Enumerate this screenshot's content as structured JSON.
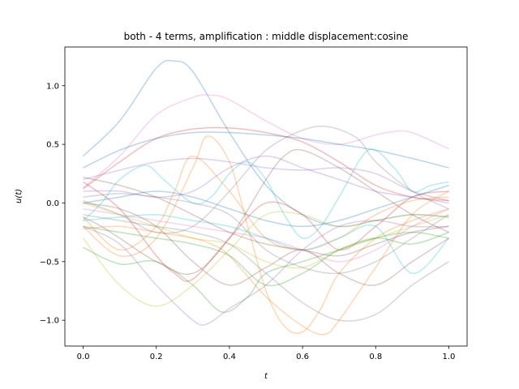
{
  "chart_data": {
    "type": "line",
    "title": "both - 4 terms, amplification : middle displacement:cosine",
    "xlabel": "t",
    "ylabel": "u(t)",
    "xlim": [
      -0.05,
      1.05
    ],
    "ylim": [
      -1.22,
      1.33
    ],
    "xticks": [
      0.0,
      0.2,
      0.4,
      0.6,
      0.8,
      1.0
    ],
    "xtick_labels": [
      "0.0",
      "0.2",
      "0.4",
      "0.6",
      "0.8",
      "1.0"
    ],
    "yticks": [
      -1.0,
      -0.5,
      0.0,
      0.5,
      1.0
    ],
    "ytick_labels": [
      "−1.0",
      "−0.5",
      "0.0",
      "0.5",
      "1.0"
    ],
    "grid": false,
    "legend": "none",
    "line_alpha": 0.3,
    "series": [
      {
        "color": "#1f77b4",
        "x": [
          0.0,
          0.1,
          0.2,
          0.25,
          0.3,
          0.4,
          0.5,
          0.6,
          0.7,
          0.8,
          0.9,
          1.0
        ],
        "y": [
          0.4,
          0.7,
          1.15,
          1.21,
          1.12,
          0.6,
          0.15,
          -0.1,
          -0.2,
          -0.15,
          -0.1,
          -0.12
        ]
      },
      {
        "color": "#e377c2",
        "x": [
          0.0,
          0.1,
          0.2,
          0.3,
          0.35,
          0.4,
          0.5,
          0.6,
          0.7,
          0.8,
          0.85,
          0.9,
          1.0
        ],
        "y": [
          0.13,
          0.4,
          0.75,
          0.9,
          0.92,
          0.88,
          0.7,
          0.55,
          0.5,
          0.58,
          0.61,
          0.6,
          0.46
        ]
      },
      {
        "color": "#7f7f7f",
        "x": [
          0.0,
          0.1,
          0.2,
          0.3,
          0.4,
          0.5,
          0.6,
          0.67,
          0.75,
          0.8,
          0.9,
          1.0
        ],
        "y": [
          0.02,
          -0.1,
          -0.25,
          -0.2,
          0.1,
          0.45,
          0.62,
          0.65,
          0.55,
          0.35,
          0.1,
          -0.05
        ]
      },
      {
        "color": "#1f77b4",
        "x": [
          0.0,
          0.1,
          0.2,
          0.3,
          0.4,
          0.5,
          0.6,
          0.7,
          0.8,
          0.9,
          1.0
        ],
        "y": [
          0.3,
          0.45,
          0.55,
          0.6,
          0.6,
          0.58,
          0.55,
          0.5,
          0.45,
          0.38,
          0.3
        ]
      },
      {
        "color": "#d62728",
        "x": [
          0.0,
          0.1,
          0.2,
          0.3,
          0.4,
          0.5,
          0.6,
          0.7,
          0.8,
          0.9,
          1.0
        ],
        "y": [
          0.12,
          0.35,
          0.55,
          0.63,
          0.64,
          0.6,
          0.52,
          0.35,
          0.15,
          0.05,
          0.02
        ]
      },
      {
        "color": "#9467bd",
        "x": [
          0.0,
          0.1,
          0.2,
          0.3,
          0.4,
          0.5,
          0.6,
          0.7,
          0.8,
          0.9,
          1.0
        ],
        "y": [
          0.2,
          0.28,
          0.35,
          0.38,
          0.35,
          0.3,
          0.28,
          0.3,
          0.25,
          0.1,
          0.02
        ]
      },
      {
        "color": "#17becf",
        "x": [
          0.0,
          0.05,
          0.1,
          0.17,
          0.22,
          0.3,
          0.35,
          0.4,
          0.45,
          0.5,
          0.55,
          0.6,
          0.65,
          0.7,
          0.78,
          0.85,
          0.9,
          0.95,
          1.0
        ],
        "y": [
          -0.15,
          0.0,
          0.2,
          0.32,
          0.2,
          0.0,
          0.05,
          0.25,
          0.35,
          0.2,
          -0.1,
          -0.3,
          -0.2,
          0.05,
          0.45,
          0.3,
          0.1,
          0.15,
          0.18
        ]
      },
      {
        "color": "#ff7f0e",
        "x": [
          0.0,
          0.1,
          0.2,
          0.3,
          0.34,
          0.4,
          0.45,
          0.5,
          0.55,
          0.6,
          0.65,
          0.7,
          0.8,
          0.9,
          1.0
        ],
        "y": [
          -0.2,
          -0.45,
          -0.3,
          0.3,
          0.57,
          0.35,
          -0.2,
          -0.75,
          -1.05,
          -1.1,
          -0.9,
          -0.6,
          -0.3,
          -0.15,
          -0.05
        ]
      },
      {
        "color": "#ff7f0e",
        "x": [
          0.0,
          0.1,
          0.2,
          0.3,
          0.35,
          0.4,
          0.5,
          0.6,
          0.66,
          0.7,
          0.8,
          0.9,
          1.0
        ],
        "y": [
          -0.22,
          -0.2,
          -0.25,
          -0.3,
          -0.35,
          -0.45,
          -0.8,
          -1.05,
          -1.12,
          -1.0,
          -0.55,
          -0.1,
          0.1
        ]
      },
      {
        "color": "#ff7f0e",
        "x": [
          0.0,
          0.1,
          0.2,
          0.25,
          0.3,
          0.4,
          0.5,
          0.6,
          0.7,
          0.8,
          0.9,
          1.0
        ],
        "y": [
          -0.12,
          -0.4,
          -0.2,
          0.1,
          0.4,
          0.1,
          -0.3,
          -0.4,
          -0.3,
          -0.1,
          0.02,
          0.05
        ]
      },
      {
        "color": "#2ca02c",
        "x": [
          0.0,
          0.1,
          0.2,
          0.3,
          0.38,
          0.45,
          0.5,
          0.6,
          0.7,
          0.8,
          0.9,
          1.0
        ],
        "y": [
          -0.38,
          -0.52,
          -0.5,
          -0.7,
          -0.93,
          -0.8,
          -0.6,
          -0.5,
          -0.4,
          -0.3,
          -0.25,
          -0.3
        ]
      },
      {
        "color": "#bcbd22",
        "x": [
          0.0,
          0.1,
          0.2,
          0.3,
          0.4,
          0.5,
          0.6,
          0.7,
          0.8,
          0.9,
          1.0
        ],
        "y": [
          -0.3,
          -0.7,
          -0.88,
          -0.7,
          -0.4,
          -0.1,
          -0.1,
          -0.2,
          -0.15,
          -0.1,
          -0.12
        ]
      },
      {
        "color": "#9467bd",
        "x": [
          0.0,
          0.1,
          0.2,
          0.3,
          0.34,
          0.4,
          0.5,
          0.6,
          0.7,
          0.8,
          0.9,
          1.0
        ],
        "y": [
          -0.2,
          -0.35,
          -0.7,
          -1.0,
          -1.03,
          -0.9,
          -0.7,
          -0.4,
          -0.2,
          -0.15,
          -0.2,
          -0.2
        ]
      },
      {
        "color": "#8c564b",
        "x": [
          0.0,
          0.05,
          0.1,
          0.2,
          0.3,
          0.4,
          0.5,
          0.55,
          0.6,
          0.7,
          0.8,
          0.9,
          1.0
        ],
        "y": [
          -0.12,
          -0.2,
          -0.3,
          -0.5,
          -0.6,
          -0.3,
          0.2,
          0.4,
          0.45,
          0.3,
          0.1,
          -0.1,
          -0.25
        ]
      },
      {
        "color": "#7f7f7f",
        "x": [
          0.0,
          0.1,
          0.2,
          0.3,
          0.4,
          0.5,
          0.6,
          0.7,
          0.8,
          0.9,
          1.0
        ],
        "y": [
          0.05,
          0.08,
          0.05,
          0.0,
          -0.1,
          -0.4,
          -0.55,
          -0.6,
          -0.5,
          -0.3,
          -0.1
        ]
      },
      {
        "color": "#d62728",
        "x": [
          0.0,
          0.1,
          0.2,
          0.25,
          0.3,
          0.4,
          0.5,
          0.6,
          0.7,
          0.8,
          0.9,
          1.0
        ],
        "y": [
          0.18,
          -0.05,
          -0.45,
          -0.6,
          -0.65,
          -0.3,
          0.0,
          -0.1,
          -0.4,
          -0.2,
          0.05,
          0.1
        ]
      },
      {
        "color": "#e377c2",
        "x": [
          0.0,
          0.1,
          0.2,
          0.3,
          0.4,
          0.5,
          0.6,
          0.7,
          0.8,
          0.9,
          1.0
        ],
        "y": [
          -0.05,
          -0.1,
          -0.15,
          -0.2,
          -0.25,
          -0.3,
          -0.4,
          -0.5,
          -0.4,
          -0.2,
          -0.05
        ]
      },
      {
        "color": "#17becf",
        "x": [
          0.0,
          0.1,
          0.2,
          0.3,
          0.4,
          0.5,
          0.6,
          0.7,
          0.8,
          0.9,
          1.0
        ],
        "y": [
          -0.15,
          -0.12,
          -0.1,
          -0.15,
          -0.2,
          -0.3,
          -0.4,
          -0.3,
          -0.2,
          -0.6,
          -0.3
        ]
      },
      {
        "color": "#8c564b",
        "x": [
          0.0,
          0.1,
          0.2,
          0.3,
          0.4,
          0.5,
          0.6,
          0.7,
          0.8,
          0.9,
          1.0
        ],
        "y": [
          0.0,
          -0.05,
          -0.2,
          -0.5,
          -0.7,
          -0.55,
          -0.4,
          -0.6,
          -0.7,
          -0.5,
          -0.3
        ]
      },
      {
        "color": "#bcbd22",
        "x": [
          0.0,
          0.1,
          0.2,
          0.3,
          0.4,
          0.5,
          0.6,
          0.7,
          0.8,
          0.9,
          1.0
        ],
        "y": [
          0.0,
          -0.1,
          -0.2,
          -0.3,
          -0.35,
          -0.5,
          -0.55,
          -0.4,
          -0.3,
          -0.2,
          -0.1
        ]
      },
      {
        "color": "#2ca02c",
        "x": [
          0.0,
          0.1,
          0.2,
          0.3,
          0.4,
          0.5,
          0.6,
          0.7,
          0.8,
          0.9,
          1.0
        ],
        "y": [
          -0.2,
          -0.25,
          -0.3,
          -0.35,
          -0.45,
          -0.7,
          -0.6,
          -0.4,
          -0.3,
          -0.35,
          -0.25
        ]
      },
      {
        "color": "#7f7f7f",
        "x": [
          0.0,
          0.1,
          0.2,
          0.3,
          0.4,
          0.5,
          0.6,
          0.7,
          0.8,
          0.9,
          1.0
        ],
        "y": [
          -0.1,
          -0.15,
          -0.2,
          -0.25,
          -0.35,
          -0.6,
          -0.85,
          -1.0,
          -0.95,
          -0.7,
          -0.5
        ]
      },
      {
        "color": "#1f77b4",
        "x": [
          0.0,
          0.1,
          0.2,
          0.3,
          0.4,
          0.5,
          0.6,
          0.7,
          0.8,
          0.9,
          1.0
        ],
        "y": [
          0.0,
          0.05,
          0.1,
          0.05,
          -0.05,
          -0.15,
          -0.2,
          -0.15,
          -0.05,
          0.05,
          0.15
        ]
      },
      {
        "color": "#9467bd",
        "x": [
          0.0,
          0.1,
          0.2,
          0.3,
          0.4,
          0.5,
          0.6,
          0.7,
          0.8,
          0.9,
          1.0
        ],
        "y": [
          0.1,
          0.1,
          0.05,
          0.1,
          0.3,
          0.4,
          0.3,
          0.2,
          0.1,
          0.05,
          0.0
        ]
      },
      {
        "color": "#8c564b",
        "x": [
          0.0,
          0.1,
          0.2,
          0.3,
          0.4,
          0.5,
          0.6,
          0.7,
          0.8,
          0.9,
          1.0
        ],
        "y": [
          0.22,
          0.15,
          0.05,
          -0.1,
          -0.25,
          -0.35,
          -0.4,
          -0.45,
          -0.35,
          -0.25,
          -0.2
        ]
      }
    ]
  }
}
